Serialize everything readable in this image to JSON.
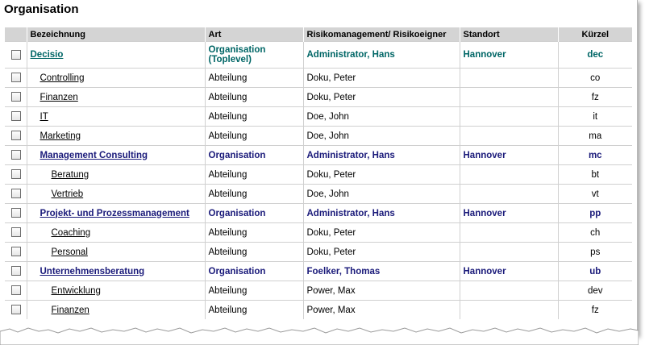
{
  "page": {
    "title": "Organisation"
  },
  "columns": {
    "bezeichnung": "Bezeichnung",
    "art": "Art",
    "risiko": "Risikomanagement/ Risikoeigner",
    "standort": "Standort",
    "kuerzel": "Kürzel"
  },
  "rows": [
    {
      "name": "Decisio",
      "art": "Organisation (Toplevel)",
      "risiko": "Administrator, Hans",
      "standort": "Hannover",
      "kuerzel": "dec"
    },
    {
      "name": "Controlling",
      "art": "Abteilung",
      "risiko": "Doku, Peter",
      "standort": "",
      "kuerzel": "co"
    },
    {
      "name": "Finanzen",
      "art": "Abteilung",
      "risiko": "Doku, Peter",
      "standort": "",
      "kuerzel": "fz"
    },
    {
      "name": "IT",
      "art": "Abteilung",
      "risiko": "Doe, John",
      "standort": "",
      "kuerzel": "it"
    },
    {
      "name": "Marketing",
      "art": "Abteilung",
      "risiko": "Doe, John",
      "standort": "",
      "kuerzel": "ma"
    },
    {
      "name": "Management Consulting",
      "art": "Organisation",
      "risiko": "Administrator, Hans",
      "standort": "Hannover",
      "kuerzel": "mc"
    },
    {
      "name": "Beratung",
      "art": "Abteilung",
      "risiko": "Doku, Peter",
      "standort": "",
      "kuerzel": "bt"
    },
    {
      "name": "Vertrieb",
      "art": "Abteilung",
      "risiko": "Doe, John",
      "standort": "",
      "kuerzel": "vt"
    },
    {
      "name": "Projekt- und Prozessmanagement",
      "art": "Organisation",
      "risiko": "Administrator, Hans",
      "standort": "Hannover",
      "kuerzel": "pp"
    },
    {
      "name": "Coaching",
      "art": "Abteilung",
      "risiko": "Doku, Peter",
      "standort": "",
      "kuerzel": "ch"
    },
    {
      "name": "Personal",
      "art": "Abteilung",
      "risiko": "Doku, Peter",
      "standort": "",
      "kuerzel": "ps"
    },
    {
      "name": "Unternehmensberatung",
      "art": "Organisation",
      "risiko": "Foelker, Thomas",
      "standort": "Hannover",
      "kuerzel": "ub"
    },
    {
      "name": "Entwicklung",
      "art": "Abteilung",
      "risiko": "Power, Max",
      "standort": "",
      "kuerzel": "dev"
    },
    {
      "name": "Finanzen",
      "art": "Abteilung",
      "risiko": "Power, Max",
      "standort": "",
      "kuerzel": "fz"
    }
  ],
  "colors": {
    "organisation": "#1a1a7a",
    "toplevel": "#006666",
    "header_bg": "#d4d4d4"
  }
}
